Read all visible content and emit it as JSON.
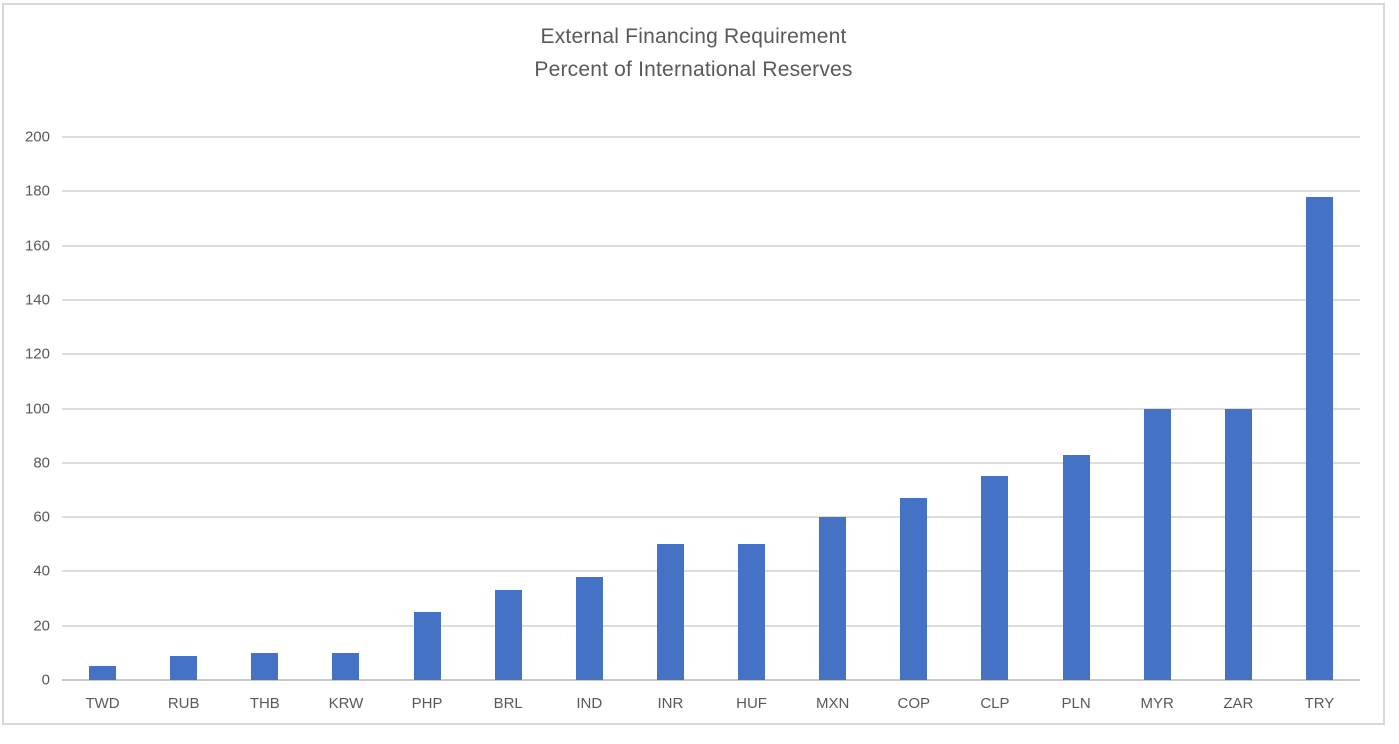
{
  "chart_data": {
    "type": "bar",
    "title": "External Financing Requirement",
    "subtitle": "Percent of International Reserves",
    "categories": [
      "TWD",
      "RUB",
      "THB",
      "KRW",
      "PHP",
      "BRL",
      "IND",
      "INR",
      "HUF",
      "MXN",
      "COP",
      "CLP",
      "PLN",
      "MYR",
      "ZAR",
      "TRY"
    ],
    "values": [
      5,
      9,
      10,
      10,
      25,
      33,
      38,
      50,
      50,
      60,
      67,
      75,
      83,
      100,
      100,
      178
    ],
    "xlabel": "",
    "ylabel": "",
    "ylim": [
      0,
      200
    ],
    "yticks": [
      0,
      20,
      40,
      60,
      80,
      100,
      120,
      140,
      160,
      180,
      200
    ],
    "grid": true,
    "legend_position": "none",
    "colors": {
      "bar": "#4472c4",
      "text": "#595959",
      "gridline": "#dcdcdc",
      "axis_line": "#c9c9c9",
      "border": "#d8d8d8",
      "background": "#ffffff"
    }
  }
}
